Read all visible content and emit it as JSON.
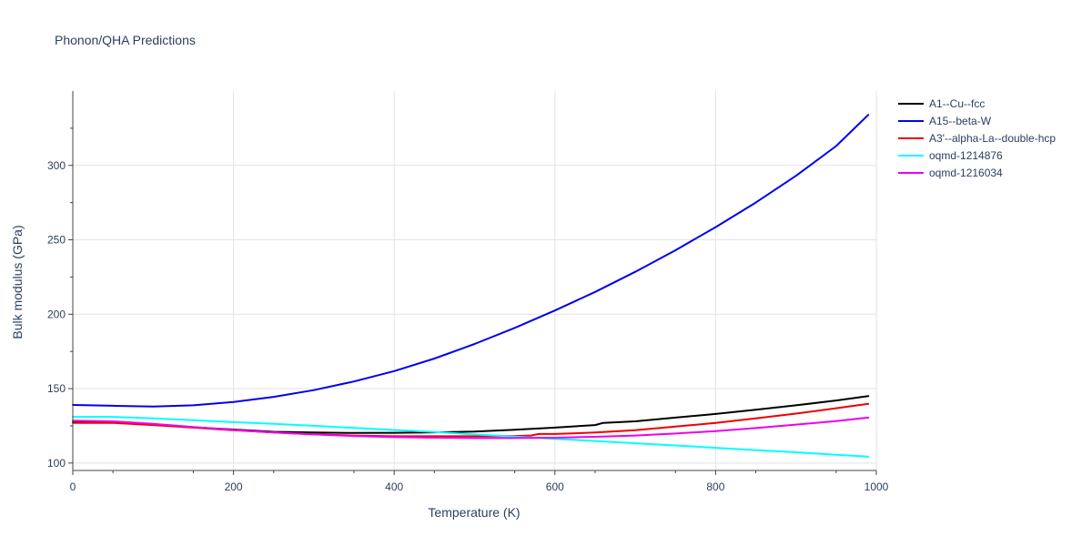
{
  "chart_data": {
    "type": "line",
    "title": "Phonon/QHA Predictions",
    "xlabel": "Temperature (K)",
    "ylabel": "Bulk modulus (GPa)",
    "xlim": [
      0,
      1000
    ],
    "ylim": [
      95,
      350
    ],
    "x_ticks": [
      0,
      200,
      400,
      600,
      800,
      1000
    ],
    "y_ticks": [
      100,
      150,
      200,
      250,
      300
    ],
    "grid": true,
    "legend_position": "right",
    "series": [
      {
        "name": "A1--Cu--fcc",
        "color": "#000000",
        "x": [
          0,
          50,
          100,
          150,
          200,
          250,
          300,
          350,
          400,
          450,
          500,
          550,
          600,
          650,
          660,
          700,
          750,
          800,
          850,
          900,
          950,
          990
        ],
        "y": [
          127.5,
          127.5,
          126.0,
          124.0,
          122.5,
          121.0,
          120.5,
          120.2,
          120.3,
          120.6,
          121.2,
          122.4,
          123.8,
          125.5,
          127.0,
          128.0,
          130.5,
          133.0,
          135.8,
          138.8,
          142.0,
          145.0
        ]
      },
      {
        "name": "A15--beta-W",
        "color": "#0000ee",
        "x": [
          0,
          50,
          100,
          150,
          200,
          250,
          300,
          350,
          400,
          450,
          500,
          550,
          600,
          650,
          700,
          750,
          800,
          850,
          900,
          950,
          990
        ],
        "y": [
          139.0,
          138.5,
          138.0,
          138.8,
          141.0,
          144.5,
          149.0,
          154.8,
          161.8,
          170.2,
          180.0,
          190.8,
          202.5,
          215.0,
          228.5,
          243.0,
          258.5,
          275.0,
          293.0,
          313.0,
          334.0
        ]
      },
      {
        "name": "A3'--alpha-La--double-hcp",
        "color": "#ee0000",
        "x": [
          0,
          50,
          100,
          150,
          200,
          250,
          300,
          350,
          400,
          450,
          500,
          550,
          570,
          580,
          600,
          650,
          700,
          750,
          800,
          850,
          900,
          950,
          990
        ],
        "y": [
          127.0,
          127.0,
          125.5,
          123.8,
          122.0,
          120.5,
          119.3,
          118.5,
          118.0,
          118.0,
          118.0,
          118.2,
          118.5,
          119.5,
          119.5,
          120.5,
          122.0,
          124.5,
          127.0,
          130.0,
          133.2,
          136.8,
          139.8
        ]
      },
      {
        "name": "oqmd-1214876",
        "color": "#00ffff",
        "x": [
          0,
          50,
          100,
          150,
          200,
          250,
          300,
          350,
          400,
          450,
          500,
          550,
          600,
          650,
          700,
          750,
          800,
          850,
          900,
          950,
          990
        ],
        "y": [
          131.0,
          131.0,
          130.0,
          128.8,
          127.5,
          126.3,
          125.0,
          123.6,
          122.2,
          120.8,
          119.2,
          117.8,
          116.3,
          114.8,
          113.3,
          111.8,
          110.2,
          108.7,
          107.2,
          105.6,
          104.3
        ]
      },
      {
        "name": "oqmd-1216034",
        "color": "#ee00ee",
        "x": [
          0,
          50,
          100,
          150,
          200,
          250,
          300,
          350,
          400,
          450,
          500,
          550,
          600,
          650,
          700,
          750,
          800,
          850,
          900,
          950,
          990
        ],
        "y": [
          128.5,
          128.0,
          126.3,
          124.2,
          122.2,
          120.5,
          119.2,
          118.2,
          117.4,
          117.0,
          116.8,
          116.8,
          117.0,
          117.6,
          118.5,
          119.8,
          121.5,
          123.5,
          125.8,
          128.2,
          130.5
        ]
      }
    ]
  }
}
